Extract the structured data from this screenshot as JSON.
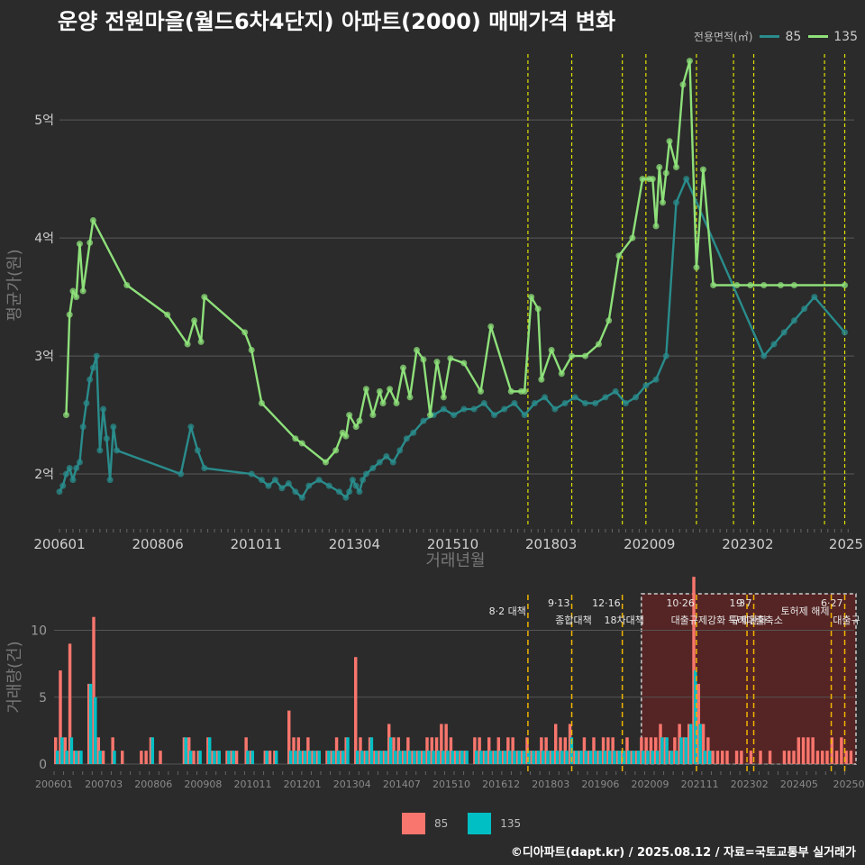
{
  "title": "운양 전원마을(월드6차4단지) 아파트(2000) 매매가격 변화",
  "credit": "©디아파트(dapt.kr) / 2025.08.12 / 자료=국토교통부 실거래가",
  "legend_top": {
    "title": "전용면적(㎡)",
    "items": [
      "85",
      "135"
    ]
  },
  "legend_bottom": {
    "items": [
      "85",
      "135"
    ]
  },
  "colors": {
    "s85_line": "#2a8c8c",
    "s135_line": "#8ee07a",
    "s85_bar": "#f8766d",
    "s135_bar": "#00bfc4",
    "vline": "#e0e000",
    "vline_bottom": "#f0b400",
    "highlight": "#5a2323"
  },
  "chart_data": [
    {
      "type": "line",
      "xlabel": "거래년월",
      "ylabel": "평균가(원)",
      "x_ticks": [
        "200601",
        "200806",
        "201011",
        "201304",
        "201510",
        "201803",
        "202009",
        "202302",
        "2025"
      ],
      "y_ticks": [
        "2억",
        "3억",
        "4억",
        "5억"
      ],
      "ylim": [
        1.55,
        5.65
      ],
      "grid": true,
      "highlight_box": {
        "from": "202009",
        "to": "202508"
      },
      "policy_lines": [
        "2017-08",
        "2018-09",
        "2019-12",
        "2020-07",
        "2021-10",
        "2022-09",
        "2023-03",
        "2024-12",
        "2025-06"
      ],
      "series": [
        {
          "name": "135",
          "x": [
            "2006-03",
            "2006-04",
            "2006-05",
            "2006-06",
            "2006-07",
            "2006-08",
            "2006-10",
            "2006-11",
            "2007-09",
            "2008-09",
            "2009-03",
            "2009-05",
            "2009-07",
            "2009-08",
            "2010-08",
            "2010-10",
            "2011-01",
            "2011-11",
            "2012-01",
            "2012-08",
            "2012-11",
            "2013-01",
            "2013-02",
            "2013-03",
            "2013-05",
            "2013-06",
            "2013-08",
            "2013-10",
            "2013-12",
            "2014-01",
            "2014-03",
            "2014-05",
            "2014-07",
            "2014-09",
            "2014-11",
            "2015-01",
            "2015-03",
            "2015-05",
            "2015-07",
            "2015-09",
            "2016-01",
            "2016-06",
            "2016-09",
            "2017-03",
            "2017-06",
            "2017-07",
            "2017-09",
            "2017-11",
            "2017-12",
            "2018-03",
            "2018-06",
            "2018-09",
            "2019-01",
            "2019-05",
            "2019-08",
            "2019-11",
            "2020-03",
            "2020-06",
            "2020-08",
            "2020-09",
            "2020-10",
            "2020-11",
            "2020-12",
            "2021-01",
            "2021-02",
            "2021-04",
            "2021-06",
            "2021-08",
            "2021-10",
            "2021-12",
            "2022-03",
            "2022-10",
            "2023-02",
            "2023-06",
            "2023-11",
            "2024-03",
            "2025-06"
          ],
          "values": [
            2.5,
            3.35,
            3.55,
            3.5,
            3.95,
            3.55,
            3.96,
            4.15,
            3.6,
            3.35,
            3.1,
            3.3,
            3.12,
            3.5,
            3.2,
            3.05,
            2.6,
            2.3,
            2.26,
            2.1,
            2.2,
            2.35,
            2.32,
            2.5,
            2.4,
            2.45,
            2.72,
            2.5,
            2.7,
            2.6,
            2.72,
            2.6,
            2.9,
            2.65,
            3.05,
            2.97,
            2.5,
            2.95,
            2.65,
            2.98,
            2.94,
            2.7,
            3.25,
            2.7,
            2.7,
            2.7,
            3.5,
            3.4,
            2.8,
            3.05,
            2.85,
            3.0,
            3.0,
            3.1,
            3.3,
            3.85,
            4.0,
            4.5,
            4.5,
            4.5,
            4.1,
            4.6,
            4.3,
            4.55,
            4.82,
            4.6,
            5.3,
            5.5,
            3.75,
            4.58,
            3.6,
            3.6,
            3.6,
            3.6,
            3.6,
            3.6,
            3.6
          ]
        },
        {
          "name": "85",
          "x": [
            "2006-01",
            "2006-02",
            "2006-03",
            "2006-04",
            "2006-05",
            "2006-06",
            "2006-07",
            "2006-08",
            "2006-09",
            "2006-10",
            "2006-11",
            "2006-12",
            "2007-01",
            "2007-02",
            "2007-03",
            "2007-04",
            "2007-05",
            "2007-06",
            "2009-01",
            "2009-04",
            "2009-06",
            "2009-08",
            "2010-10",
            "2011-01",
            "2011-03",
            "2011-05",
            "2011-07",
            "2011-09",
            "2011-11",
            "2012-01",
            "2012-03",
            "2012-06",
            "2012-09",
            "2012-12",
            "2013-02",
            "2013-03",
            "2013-04",
            "2013-05",
            "2013-06",
            "2013-07",
            "2013-08",
            "2013-10",
            "2013-12",
            "2014-02",
            "2014-04",
            "2014-06",
            "2014-08",
            "2014-10",
            "2015-01",
            "2015-04",
            "2015-07",
            "2015-10",
            "2016-01",
            "2016-04",
            "2016-07",
            "2016-10",
            "2017-01",
            "2017-04",
            "2017-07",
            "2017-10",
            "2018-01",
            "2018-04",
            "2018-07",
            "2018-10",
            "2019-01",
            "2019-04",
            "2019-07",
            "2019-10",
            "2020-01",
            "2020-04",
            "2020-07",
            "2020-10",
            "2021-01",
            "2021-04",
            "2021-07",
            "2023-06",
            "2023-09",
            "2023-12",
            "2024-03",
            "2024-06",
            "2024-09",
            "2025-06"
          ],
          "values": [
            1.85,
            1.9,
            2.0,
            2.05,
            1.95,
            2.05,
            2.1,
            2.4,
            2.6,
            2.8,
            2.9,
            3.0,
            2.2,
            2.55,
            2.3,
            1.95,
            2.4,
            2.2,
            2.0,
            2.4,
            2.2,
            2.05,
            2.0,
            1.95,
            1.9,
            1.95,
            1.88,
            1.92,
            1.85,
            1.8,
            1.9,
            1.95,
            1.9,
            1.85,
            1.8,
            1.85,
            1.95,
            1.9,
            1.85,
            1.95,
            2.0,
            2.05,
            2.1,
            2.15,
            2.1,
            2.2,
            2.3,
            2.35,
            2.45,
            2.5,
            2.55,
            2.5,
            2.55,
            2.55,
            2.6,
            2.5,
            2.55,
            2.6,
            2.5,
            2.6,
            2.65,
            2.55,
            2.6,
            2.65,
            2.6,
            2.6,
            2.65,
            2.7,
            2.6,
            2.65,
            2.75,
            2.8,
            3.0,
            4.3,
            4.5,
            3.0,
            3.1,
            3.2,
            3.3,
            3.4,
            3.5,
            3.2
          ]
        }
      ]
    },
    {
      "type": "bar",
      "xlabel": "",
      "ylabel": "거래량(건)",
      "x_ticks": [
        "200601",
        "200703",
        "200806",
        "200908",
        "201011",
        "201201",
        "201304",
        "201407",
        "201510",
        "201612",
        "201803",
        "201906",
        "202009",
        "202111",
        "202302",
        "202405",
        "20250"
      ],
      "y_ticks": [
        "0",
        "5",
        "10"
      ],
      "ylim": [
        0,
        13
      ],
      "policy_annotations": [
        {
          "date": "2017-08",
          "label": "8·2 대책"
        },
        {
          "date": "2018-09",
          "label": "9·13",
          "sub": "종합대책"
        },
        {
          "date": "2019-12",
          "label": "12·16",
          "sub": "18차대책"
        },
        {
          "date": "2021-10",
          "label": "10·26",
          "sub": "대출규제강화"
        },
        {
          "date": "2023-01",
          "label": "1·3",
          "sub": "규제완화"
        },
        {
          "date": "2023-03",
          "label": "9·7",
          "sub": "특례대출축소"
        },
        {
          "date": "2025-06",
          "label": "6·27",
          "sub": "대출규"
        },
        {
          "date": "2025-02",
          "label": "토허제 해제"
        }
      ],
      "series": [
        {
          "name": "85",
          "values": [
            2,
            7,
            2,
            9,
            1,
            1,
            0,
            6,
            11,
            2,
            1,
            0,
            2,
            0,
            1,
            0,
            0,
            0,
            1,
            1,
            2,
            0,
            1,
            0,
            0,
            0,
            0,
            2,
            2,
            1,
            1,
            0,
            2,
            1,
            1,
            0,
            1,
            1,
            1,
            0,
            2,
            1,
            0,
            0,
            1,
            1,
            1,
            0,
            0,
            4,
            2,
            2,
            1,
            2,
            1,
            1,
            0,
            1,
            1,
            2,
            1,
            2,
            0,
            8,
            2,
            1,
            2,
            1,
            1,
            1,
            3,
            2,
            2,
            1,
            2,
            1,
            1,
            1,
            2,
            2,
            2,
            3,
            3,
            2,
            1,
            1,
            1,
            0,
            2,
            2,
            1,
            2,
            1,
            2,
            1,
            2,
            2,
            1,
            1,
            2,
            1,
            1,
            2,
            2,
            1,
            3,
            2,
            2,
            3,
            1,
            1,
            2,
            1,
            2,
            1,
            2,
            2,
            2,
            1,
            1,
            2,
            1,
            1,
            2,
            2,
            2,
            2,
            3,
            2,
            1,
            2,
            3,
            2,
            3,
            14,
            6,
            3,
            2,
            1,
            1,
            1,
            1,
            0,
            1,
            1,
            0,
            1,
            0,
            1,
            0,
            1,
            0,
            0,
            1,
            1,
            1,
            2,
            2,
            2,
            2,
            1,
            1,
            1,
            2,
            1,
            2,
            1,
            1
          ]
        },
        {
          "name": "135",
          "values": [
            1,
            2,
            1,
            2,
            1,
            1,
            0,
            6,
            5,
            1,
            0,
            0,
            1,
            0,
            0,
            0,
            0,
            0,
            0,
            0,
            2,
            0,
            0,
            0,
            0,
            0,
            0,
            2,
            1,
            0,
            1,
            0,
            2,
            1,
            1,
            0,
            1,
            1,
            0,
            0,
            1,
            1,
            0,
            0,
            1,
            0,
            1,
            0,
            0,
            1,
            1,
            1,
            1,
            1,
            1,
            1,
            0,
            1,
            1,
            1,
            1,
            2,
            0,
            1,
            1,
            1,
            2,
            1,
            1,
            1,
            2,
            1,
            1,
            1,
            1,
            1,
            1,
            1,
            1,
            1,
            1,
            1,
            1,
            1,
            1,
            1,
            1,
            0,
            1,
            1,
            1,
            1,
            1,
            1,
            1,
            1,
            1,
            1,
            1,
            1,
            1,
            1,
            1,
            1,
            1,
            1,
            1,
            1,
            2,
            1,
            1,
            1,
            1,
            1,
            1,
            1,
            1,
            1,
            1,
            1,
            1,
            1,
            1,
            1,
            1,
            1,
            1,
            2,
            2,
            1,
            1,
            2,
            2,
            3,
            7,
            3,
            1,
            1,
            0,
            0,
            0,
            0,
            0,
            0,
            0,
            0,
            0,
            0,
            0,
            0,
            0,
            0,
            0,
            0,
            0,
            0,
            0,
            0,
            0,
            0,
            0,
            0,
            0,
            0,
            0,
            0,
            0,
            0
          ]
        }
      ]
    }
  ]
}
